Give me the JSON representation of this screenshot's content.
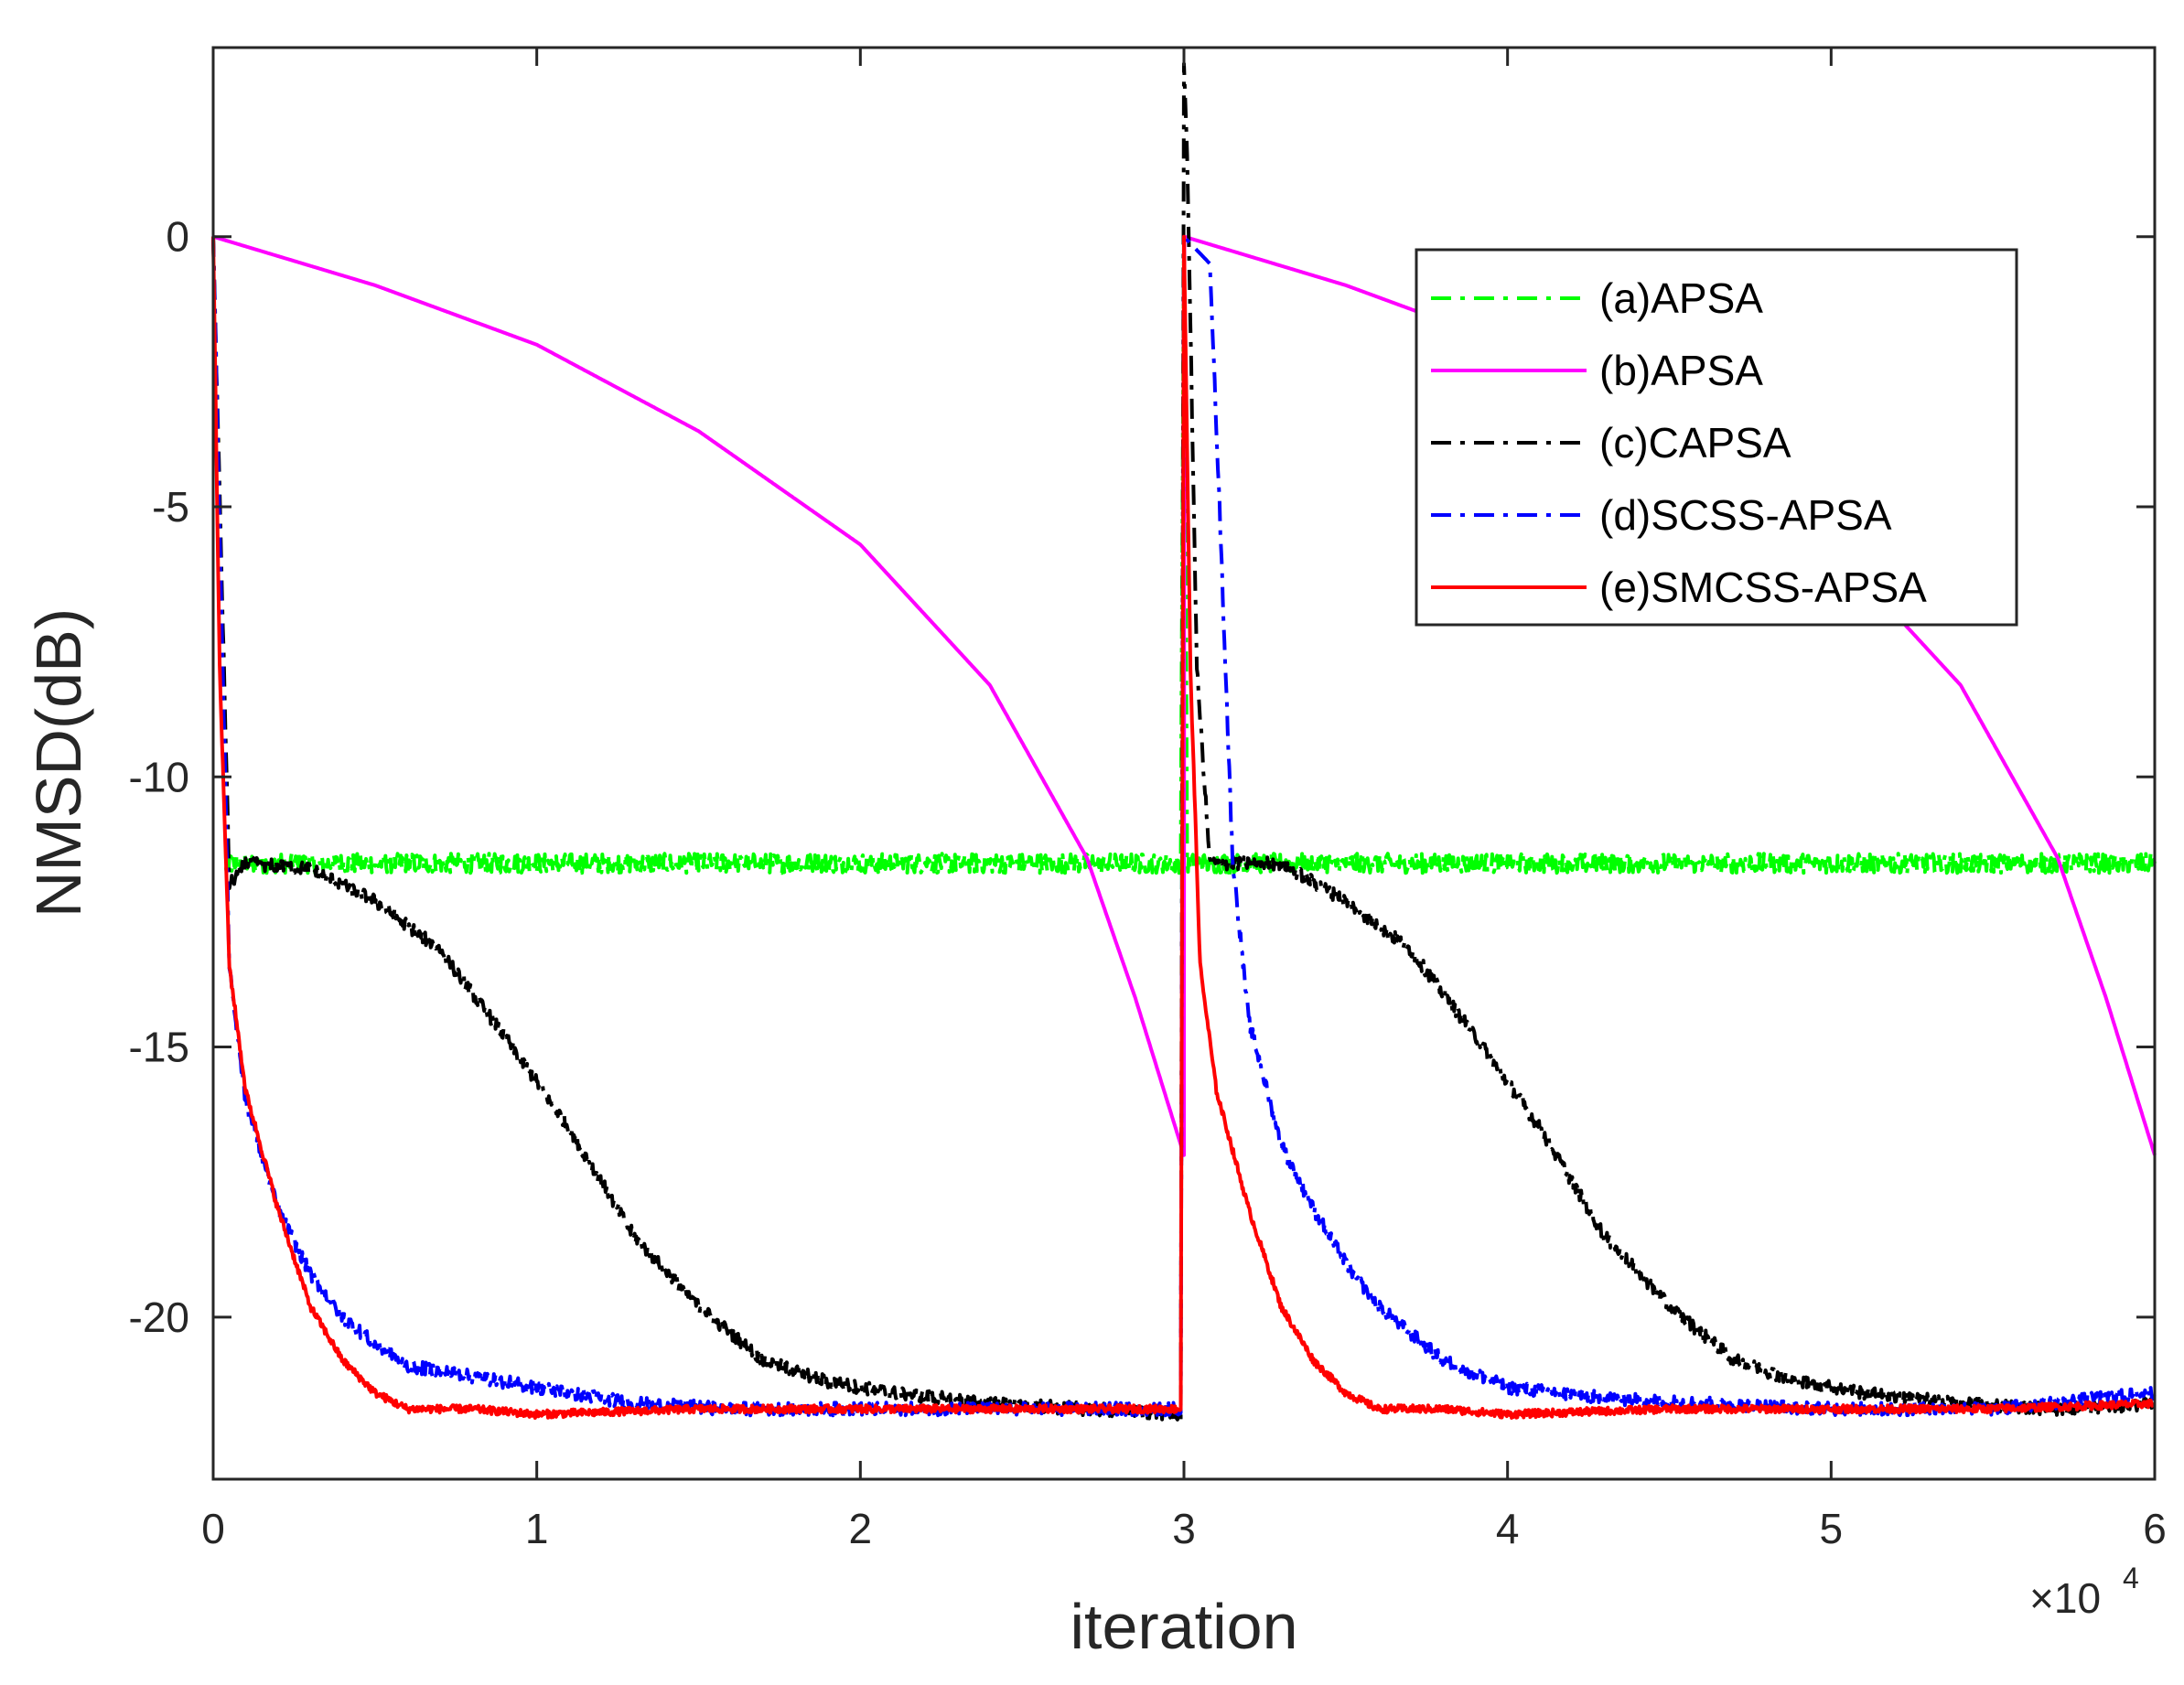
{
  "chart_data": {
    "type": "line",
    "title": "",
    "xlabel": "iteration",
    "ylabel": "NMSD(dB)",
    "x_exponent_label": {
      "base": "×10",
      "power": "4"
    },
    "xlim": [
      0,
      6
    ],
    "ylim": [
      -23,
      3.5
    ],
    "xticks": [
      0,
      1,
      2,
      3,
      4,
      5,
      6
    ],
    "xtick_labels": [
      "0",
      "1",
      "2",
      "3",
      "4",
      "5",
      "6"
    ],
    "yticks": [
      0,
      -5,
      -10,
      -15,
      -20
    ],
    "ytick_labels": [
      "0",
      "-5",
      "-10",
      "-15",
      "-20"
    ],
    "grid": false,
    "legend_position": "top-right",
    "series": [
      {
        "name": "(a)APSA",
        "color": "#00ff00",
        "style": "dashdot",
        "noise": 0.18,
        "x": [
          0,
          0.04,
          0.08,
          2.99,
          3.0,
          3.01,
          3.05,
          3.09,
          6.0
        ],
        "values": [
          0,
          -11.6,
          -11.6,
          -11.6,
          0,
          -11.6,
          -11.6,
          -11.6,
          -11.6
        ]
      },
      {
        "name": "(b)APSA",
        "color": "#ff00ff",
        "style": "solid",
        "noise": 0,
        "x": [
          0,
          0.5,
          1.0,
          1.5,
          2.0,
          2.4,
          2.7,
          2.85,
          3.0,
          3.001,
          3.5,
          4.0,
          4.5,
          5.0,
          5.4,
          5.7,
          5.85,
          6.0
        ],
        "values": [
          0,
          -0.9,
          -2.0,
          -3.6,
          -5.7,
          -8.3,
          -11.5,
          -14.1,
          -17.0,
          0,
          -0.9,
          -2.0,
          -3.6,
          -5.7,
          -8.3,
          -11.5,
          -14.1,
          -17.0
        ]
      },
      {
        "name": "(c)CAPSA",
        "color": "#000000",
        "style": "dashdot",
        "noise": 0.12,
        "x": [
          0,
          0.05,
          0.1,
          0.3,
          0.5,
          0.7,
          0.9,
          1.1,
          1.3,
          1.5,
          1.7,
          1.9,
          2.1,
          2.4,
          2.7,
          2.99,
          3.0,
          3.01,
          3.04,
          3.08,
          3.15,
          3.3,
          3.5,
          3.7,
          3.9,
          4.1,
          4.3,
          4.5,
          4.7,
          4.9,
          5.1,
          5.4,
          5.7,
          6.0
        ],
        "values": [
          0,
          -12.0,
          -11.6,
          -11.7,
          -12.3,
          -13.2,
          -14.8,
          -16.5,
          -18.5,
          -19.8,
          -20.8,
          -21.2,
          -21.4,
          -21.6,
          -21.7,
          -21.8,
          3.2,
          1.5,
          -8.0,
          -11.6,
          -11.6,
          -11.6,
          -12.3,
          -13.2,
          -14.8,
          -16.5,
          -18.5,
          -19.8,
          -20.8,
          -21.2,
          -21.4,
          -21.6,
          -21.7,
          -21.6
        ]
      },
      {
        "name": "(d)SCSS-APSA",
        "color": "#0000ff",
        "style": "dashdot",
        "noise": 0.12,
        "x": [
          0,
          0.05,
          0.1,
          0.2,
          0.3,
          0.4,
          0.5,
          0.6,
          0.8,
          1.0,
          1.3,
          1.6,
          2.0,
          2.5,
          2.99,
          3.0,
          3.08,
          3.11,
          3.15,
          3.2,
          3.3,
          3.4,
          3.5,
          3.6,
          3.8,
          4.0,
          4.3,
          4.6,
          5.0,
          5.5,
          6.0
        ],
        "values": [
          0,
          -13.5,
          -16.0,
          -18.0,
          -19.2,
          -20.0,
          -20.5,
          -20.9,
          -21.1,
          -21.3,
          -21.6,
          -21.7,
          -21.7,
          -21.7,
          -21.7,
          0,
          -0.5,
          -5.0,
          -11.5,
          -14.5,
          -16.8,
          -18.0,
          -19.0,
          -19.8,
          -20.8,
          -21.3,
          -21.5,
          -21.6,
          -21.7,
          -21.7,
          -21.4
        ]
      },
      {
        "name": "(e)SMCSS-APSA",
        "color": "#ff0000",
        "style": "solid",
        "noise": 0.07,
        "x": [
          0,
          0.02,
          0.05,
          0.1,
          0.2,
          0.3,
          0.4,
          0.5,
          0.6,
          0.8,
          1.0,
          1.5,
          2.0,
          2.5,
          2.99,
          3.0,
          3.02,
          3.05,
          3.1,
          3.2,
          3.3,
          3.4,
          3.5,
          3.6,
          3.8,
          4.0,
          4.5,
          5.0,
          5.5,
          6.0
        ],
        "values": [
          0,
          -8.0,
          -13.5,
          -15.8,
          -18.0,
          -19.8,
          -20.8,
          -21.4,
          -21.7,
          -21.7,
          -21.8,
          -21.7,
          -21.7,
          -21.7,
          -21.7,
          0,
          -8.0,
          -13.5,
          -15.8,
          -18.0,
          -19.8,
          -20.8,
          -21.4,
          -21.7,
          -21.7,
          -21.8,
          -21.7,
          -21.7,
          -21.7,
          -21.6
        ]
      }
    ]
  }
}
